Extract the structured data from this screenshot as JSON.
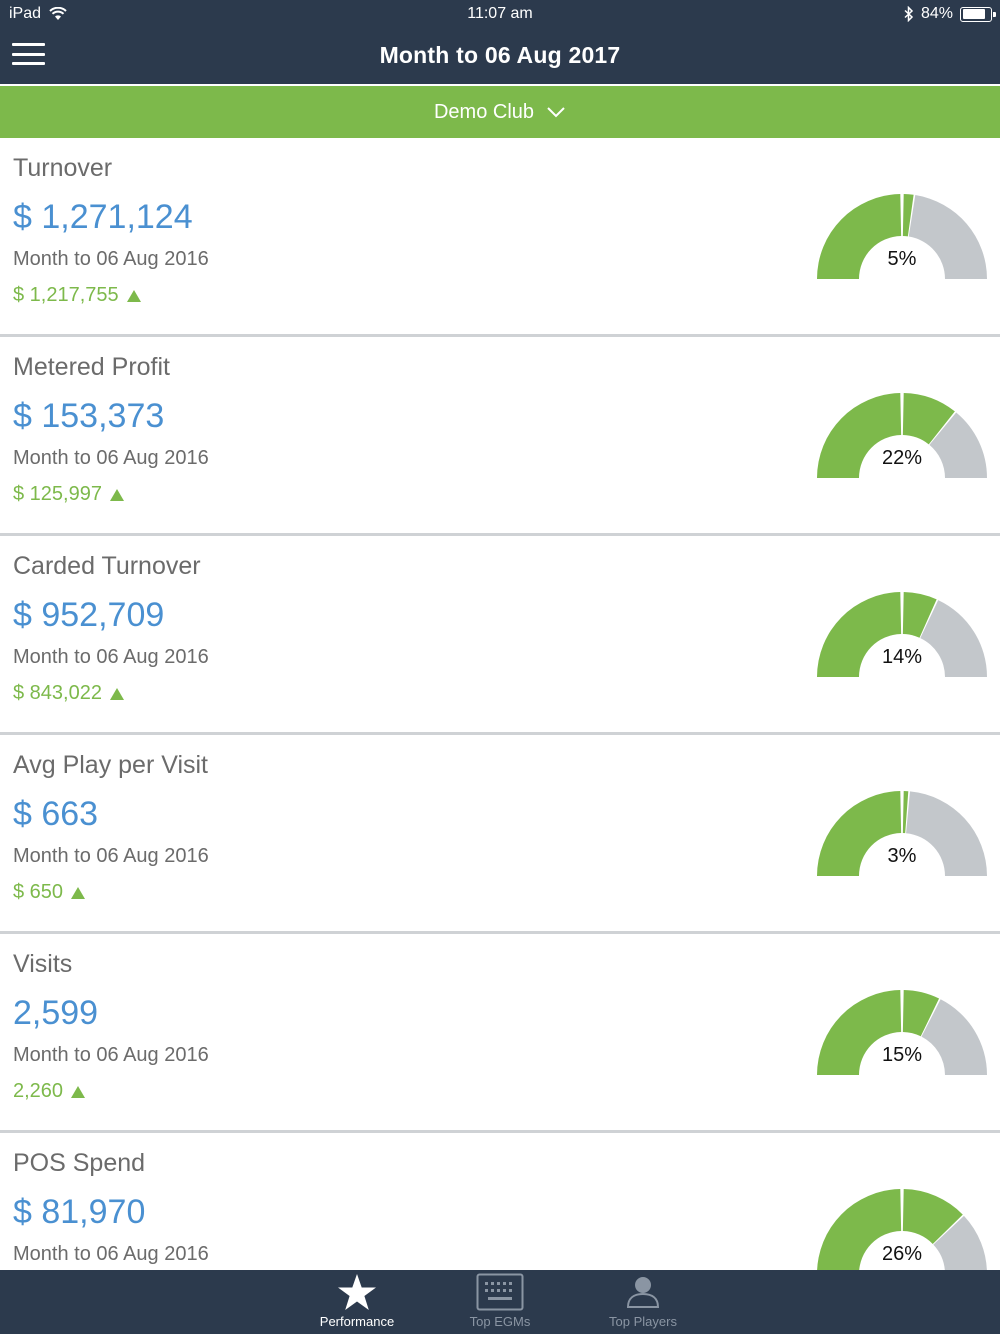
{
  "status_bar": {
    "device": "iPad",
    "time": "11:07 am",
    "battery": "84%",
    "battery_level": 0.84
  },
  "header": {
    "title": "Month to 06 Aug 2017"
  },
  "club_selector": {
    "label": "Demo Club"
  },
  "metrics": [
    {
      "name": "Turnover",
      "value": "$ 1,271,124",
      "period": "Month to 06 Aug 2016",
      "previous": "$ 1,217,755",
      "change_label": "5%",
      "change_pct": 5
    },
    {
      "name": "Metered Profit",
      "value": "$ 153,373",
      "period": "Month to 06 Aug 2016",
      "previous": "$ 125,997",
      "change_label": "22%",
      "change_pct": 22
    },
    {
      "name": "Carded Turnover",
      "value": "$ 952,709",
      "period": "Month to 06 Aug 2016",
      "previous": "$ 843,022",
      "change_label": "14%",
      "change_pct": 14
    },
    {
      "name": "Avg Play per Visit",
      "value": "$ 663",
      "period": "Month to 06 Aug 2016",
      "previous": "$ 650",
      "change_label": "3%",
      "change_pct": 3
    },
    {
      "name": "Visits",
      "value": "2,599",
      "period": "Month to 06 Aug 2016",
      "previous": "2,260",
      "change_label": "15%",
      "change_pct": 15
    },
    {
      "name": "POS Spend",
      "value": "$ 81,970",
      "period": "Month to 06 Aug 2016",
      "previous": "",
      "change_label": "26%",
      "change_pct": 26
    }
  ],
  "tabs": [
    {
      "label": "Performance",
      "icon": "star-icon",
      "active": true
    },
    {
      "label": "Top EGMs",
      "icon": "keyboard-icon",
      "active": false
    },
    {
      "label": "Top Players",
      "icon": "person-icon",
      "active": false
    }
  ],
  "colors": {
    "navy": "#2c3a4d",
    "green": "#7db94b",
    "blue": "#4a90d1",
    "grey": "#c3c7cb"
  }
}
